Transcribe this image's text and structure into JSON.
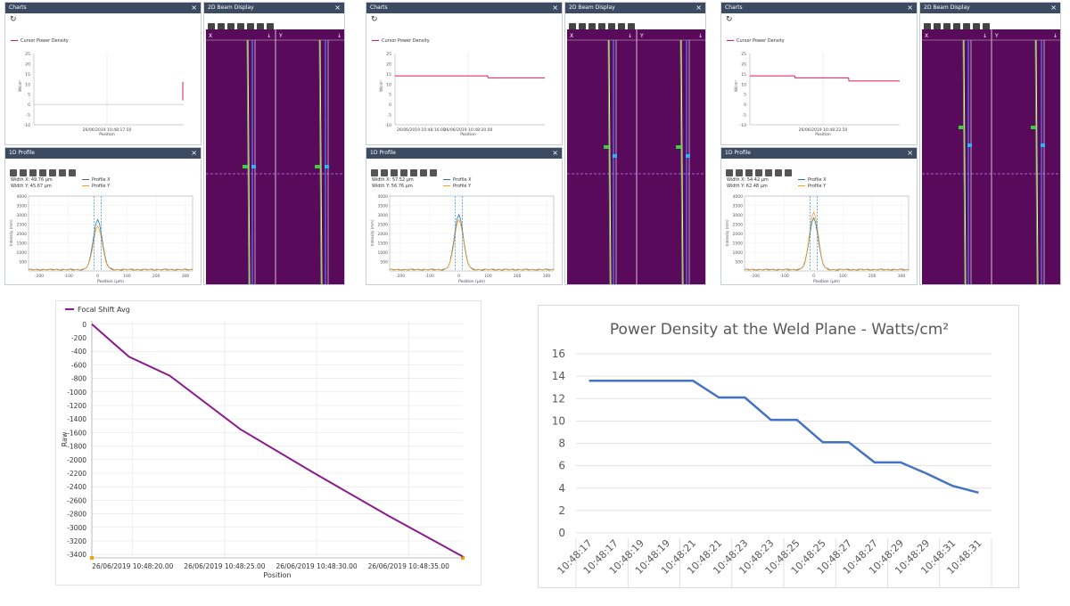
{
  "app_panels": {
    "charts_title": "Charts",
    "beam_title": "2D Beam Display",
    "profile_title": "1D Profile",
    "legend_cursor": "Cursor Power Density",
    "profile_x_label": "Profile X",
    "profile_y_label": "Profile Y",
    "position_label": "Position",
    "position_um_label": "Position (µm)",
    "intensity_label": "Intensity (mm)",
    "beam_x": "X",
    "beam_y": "Y"
  },
  "screens": [
    {
      "width_x": "Width X: 49.76 µm",
      "width_y": "Width Y: 45.67 µm",
      "timestamp": "26/06/2019 10:48:17.50",
      "yticks": [
        "25",
        "20",
        "15",
        "10",
        "5",
        "0",
        "-5",
        "-10"
      ],
      "profile_yticks": [
        "4000",
        "3500",
        "3000",
        "2500",
        "2000",
        "1500",
        "1000",
        "500"
      ],
      "profile_xticks": [
        "-200",
        "-100",
        "0",
        "100",
        "200",
        "300"
      ]
    },
    {
      "width_x": "Width X: 57.52 µm",
      "width_y": "Width Y: 56.76 µm",
      "timestamp": "26/06/2019 10:48:20.00",
      "timestamp_left": "26/06/2019 10:48:16.00",
      "yticks": [
        "25",
        "20",
        "15",
        "10",
        "5",
        "0",
        "-5",
        "-10"
      ],
      "profile_yticks": [
        "4000",
        "3500",
        "3000",
        "2500",
        "2000",
        "1500",
        "1000",
        "500"
      ],
      "profile_xticks": [
        "-200",
        "-100",
        "0",
        "100",
        "200",
        "300"
      ]
    },
    {
      "width_x": "Width X: 54.42 µm",
      "width_y": "Width Y: 62.48 µm",
      "timestamp": "26/06/2019 10:48:22.50",
      "yticks": [
        "25",
        "20",
        "15",
        "10",
        "5",
        "0",
        "-5",
        "-10"
      ],
      "profile_yticks": [
        "4000",
        "3500",
        "3000",
        "2500",
        "2000",
        "1500",
        "1000",
        "500"
      ],
      "profile_xticks": [
        "-200",
        "-100",
        "0",
        "100",
        "200",
        "300"
      ]
    }
  ],
  "colors": {
    "panel_header": "#3c4a62",
    "beam_bg": "#5a0a5a",
    "cursor_line": "#d81b60",
    "focal_line": "#8b1a8b",
    "power_line": "#4472c4",
    "profile_x": "#1f77b4",
    "profile_y": "#ff9f1a"
  },
  "chart_data": [
    {
      "type": "line",
      "legend": "Focal Shift Avg",
      "ylabel": "Raw",
      "xlabel": "Position",
      "ylim": [
        -3450,
        50
      ],
      "yticks": [
        0,
        -200,
        -400,
        -600,
        -800,
        -1000,
        -1200,
        -1400,
        -1600,
        -1800,
        -2000,
        -2200,
        -2400,
        -2600,
        -2800,
        -3000,
        -3200,
        -3400
      ],
      "xtick_labels": [
        "26/06/2019 10:48:20.00",
        "26/06/2019 10:48:25.00",
        "26/06/2019 10:48:30.00",
        "26/06/2019 10:48:35.00"
      ],
      "series": [
        {
          "name": "Focal Shift Avg",
          "x": [
            0,
            0.1,
            0.21,
            0.4,
            0.6,
            0.8,
            1.0
          ],
          "y": [
            0,
            -480,
            -760,
            -1550,
            -2200,
            -2830,
            -3430
          ]
        }
      ]
    },
    {
      "type": "line",
      "title": "Power Density at the Weld Plane - Watts/cm²",
      "ylim": [
        0,
        16
      ],
      "yticks": [
        0,
        2,
        4,
        6,
        8,
        10,
        12,
        14,
        16
      ],
      "categories": [
        "10:48:17",
        "10:48:17",
        "10:48:19",
        "10:48:19",
        "10:48:21",
        "10:48:21",
        "10:48:23",
        "10:48:23",
        "10:48:25",
        "10:48:25",
        "10:48:27",
        "10:48:27",
        "10:48:29",
        "10:48:29",
        "10:48:31",
        "10:48:31"
      ],
      "series": [
        {
          "name": "Power Density",
          "values": [
            13.6,
            13.6,
            13.6,
            13.6,
            13.6,
            12.1,
            12.1,
            10.1,
            10.1,
            8.1,
            8.1,
            6.3,
            6.3,
            5.3,
            4.2,
            3.6
          ]
        }
      ]
    }
  ]
}
